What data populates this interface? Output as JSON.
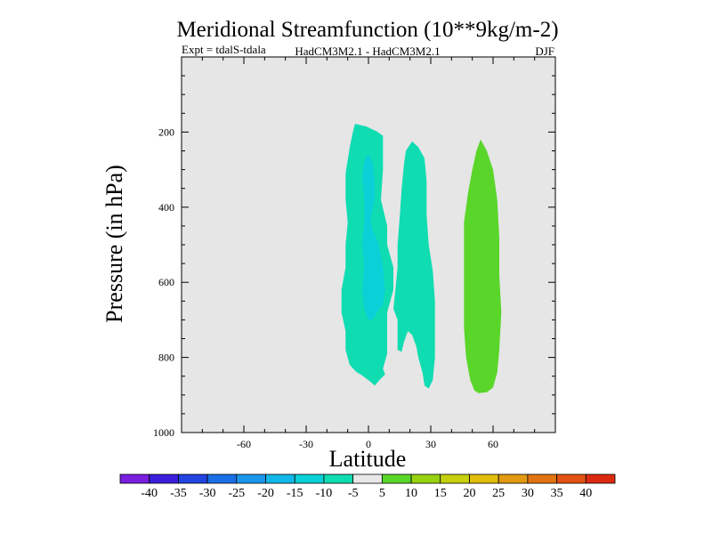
{
  "chart_data": {
    "type": "heatmap",
    "title": "Meridional Streamfunction (10**9kg/m-2)",
    "subtitle_left": "Expt = tdalS-tdala",
    "subtitle_center": "HadCM3M2.1 - HadCM3M2.1",
    "subtitle_right": "DJF",
    "xlabel": "Latitude",
    "ylabel": "Pressure (in hPa)",
    "xlim": [
      -90,
      90
    ],
    "ylim": [
      0,
      1000
    ],
    "y_inverted": true,
    "x_ticks": [
      -60,
      -30,
      0,
      30,
      60
    ],
    "y_ticks": [
      200,
      400,
      600,
      800,
      1000
    ],
    "x_tick_labels": [
      "-60",
      "-30",
      "0",
      "30",
      "60"
    ],
    "y_tick_labels": [
      "200",
      "400",
      "600",
      "800",
      "1000"
    ],
    "background_color": "#e6e6e6",
    "colorbar": {
      "labels": [
        "-40",
        "-35",
        "-30",
        "-25",
        "-20",
        "-15",
        "-10",
        "-5",
        "5",
        "10",
        "15",
        "20",
        "25",
        "30",
        "35",
        "40"
      ],
      "colors": [
        "#7a1ee0",
        "#3a1fdc",
        "#2244e0",
        "#1a6fe6",
        "#1a97ea",
        "#12b9e8",
        "#0ad0d8",
        "#10dcb2",
        "#e8e8e8",
        "#5ad62a",
        "#96d212",
        "#c6d00c",
        "#e2be0c",
        "#e29a10",
        "#e27412",
        "#e25212",
        "#dc2a10"
      ]
    },
    "regions": [
      {
        "level": "-10 to -5",
        "color": "#10dcb2",
        "points": [
          [
            -6.5,
            178
          ],
          [
            -1,
            185
          ],
          [
            4,
            198
          ],
          [
            7,
            210
          ],
          [
            7,
            300
          ],
          [
            6,
            380
          ],
          [
            9,
            450
          ],
          [
            9,
            500
          ],
          [
            12,
            560
          ],
          [
            12,
            620
          ],
          [
            9,
            680
          ],
          [
            9,
            740
          ],
          [
            9,
            790
          ],
          [
            7,
            830
          ],
          [
            8,
            845
          ],
          [
            5,
            862
          ],
          [
            3,
            875
          ],
          [
            1,
            865
          ],
          [
            -3,
            848
          ],
          [
            -6,
            838
          ],
          [
            -9,
            820
          ],
          [
            -11,
            780
          ],
          [
            -11,
            730
          ],
          [
            -13,
            680
          ],
          [
            -13,
            620
          ],
          [
            -11,
            560
          ],
          [
            -11,
            500
          ],
          [
            -10,
            440
          ],
          [
            -11,
            380
          ],
          [
            -11,
            310
          ],
          [
            -9,
            240
          ],
          [
            -7.5,
            200
          ]
        ]
      },
      {
        "level": "-10 to -5",
        "color": "#10dcb2",
        "points": [
          [
            -10,
            700
          ],
          [
            -9,
            740
          ],
          [
            -8,
            745
          ],
          [
            -9.5,
            760
          ],
          [
            -10.5,
            745
          ],
          [
            -11,
            715
          ]
        ]
      },
      {
        "level": "-10 to -5",
        "color": "#10dcb2",
        "points": [
          [
            21,
            225
          ],
          [
            24,
            240
          ],
          [
            27,
            270
          ],
          [
            28,
            330
          ],
          [
            28,
            420
          ],
          [
            29,
            500
          ],
          [
            31,
            570
          ],
          [
            32,
            650
          ],
          [
            32,
            730
          ],
          [
            32,
            800
          ],
          [
            31,
            860
          ],
          [
            29,
            883
          ],
          [
            27,
            875
          ],
          [
            26,
            840
          ],
          [
            24,
            800
          ],
          [
            23,
            770
          ],
          [
            21,
            740
          ],
          [
            19,
            730
          ],
          [
            17,
            760
          ],
          [
            16,
            785
          ],
          [
            14,
            780
          ],
          [
            14,
            740
          ],
          [
            14,
            700
          ],
          [
            12,
            670
          ],
          [
            13,
            620
          ],
          [
            14,
            560
          ],
          [
            14,
            500
          ],
          [
            15,
            430
          ],
          [
            16,
            350
          ],
          [
            17,
            290
          ],
          [
            18,
            250
          ]
        ]
      },
      {
        "level": "-15 to -10",
        "color": "#0ad0d8",
        "points": [
          [
            0,
            258
          ],
          [
            2,
            280
          ],
          [
            3,
            330
          ],
          [
            3,
            380
          ],
          [
            1,
            430
          ],
          [
            2,
            460
          ],
          [
            5,
            500
          ],
          [
            7,
            560
          ],
          [
            8,
            620
          ],
          [
            7,
            660
          ],
          [
            4,
            680
          ],
          [
            2,
            700
          ],
          [
            0,
            700
          ],
          [
            -2,
            670
          ],
          [
            -3,
            620
          ],
          [
            -2,
            560
          ],
          [
            -3,
            500
          ],
          [
            -2,
            440
          ],
          [
            -2,
            380
          ],
          [
            -3,
            320
          ],
          [
            -2,
            275
          ]
        ]
      },
      {
        "level": "5 to 10",
        "color": "#5ad62a",
        "points": [
          [
            54,
            220
          ],
          [
            57,
            250
          ],
          [
            60,
            300
          ],
          [
            62,
            380
          ],
          [
            63,
            480
          ],
          [
            63,
            580
          ],
          [
            64,
            680
          ],
          [
            63,
            780
          ],
          [
            62,
            840
          ],
          [
            60,
            880
          ],
          [
            57,
            893
          ],
          [
            53,
            895
          ],
          [
            51,
            888
          ],
          [
            49,
            860
          ],
          [
            47,
            800
          ],
          [
            46,
            720
          ],
          [
            46,
            620
          ],
          [
            46,
            520
          ],
          [
            46,
            440
          ],
          [
            48,
            360
          ],
          [
            50,
            300
          ],
          [
            52,
            250
          ]
        ]
      }
    ]
  }
}
